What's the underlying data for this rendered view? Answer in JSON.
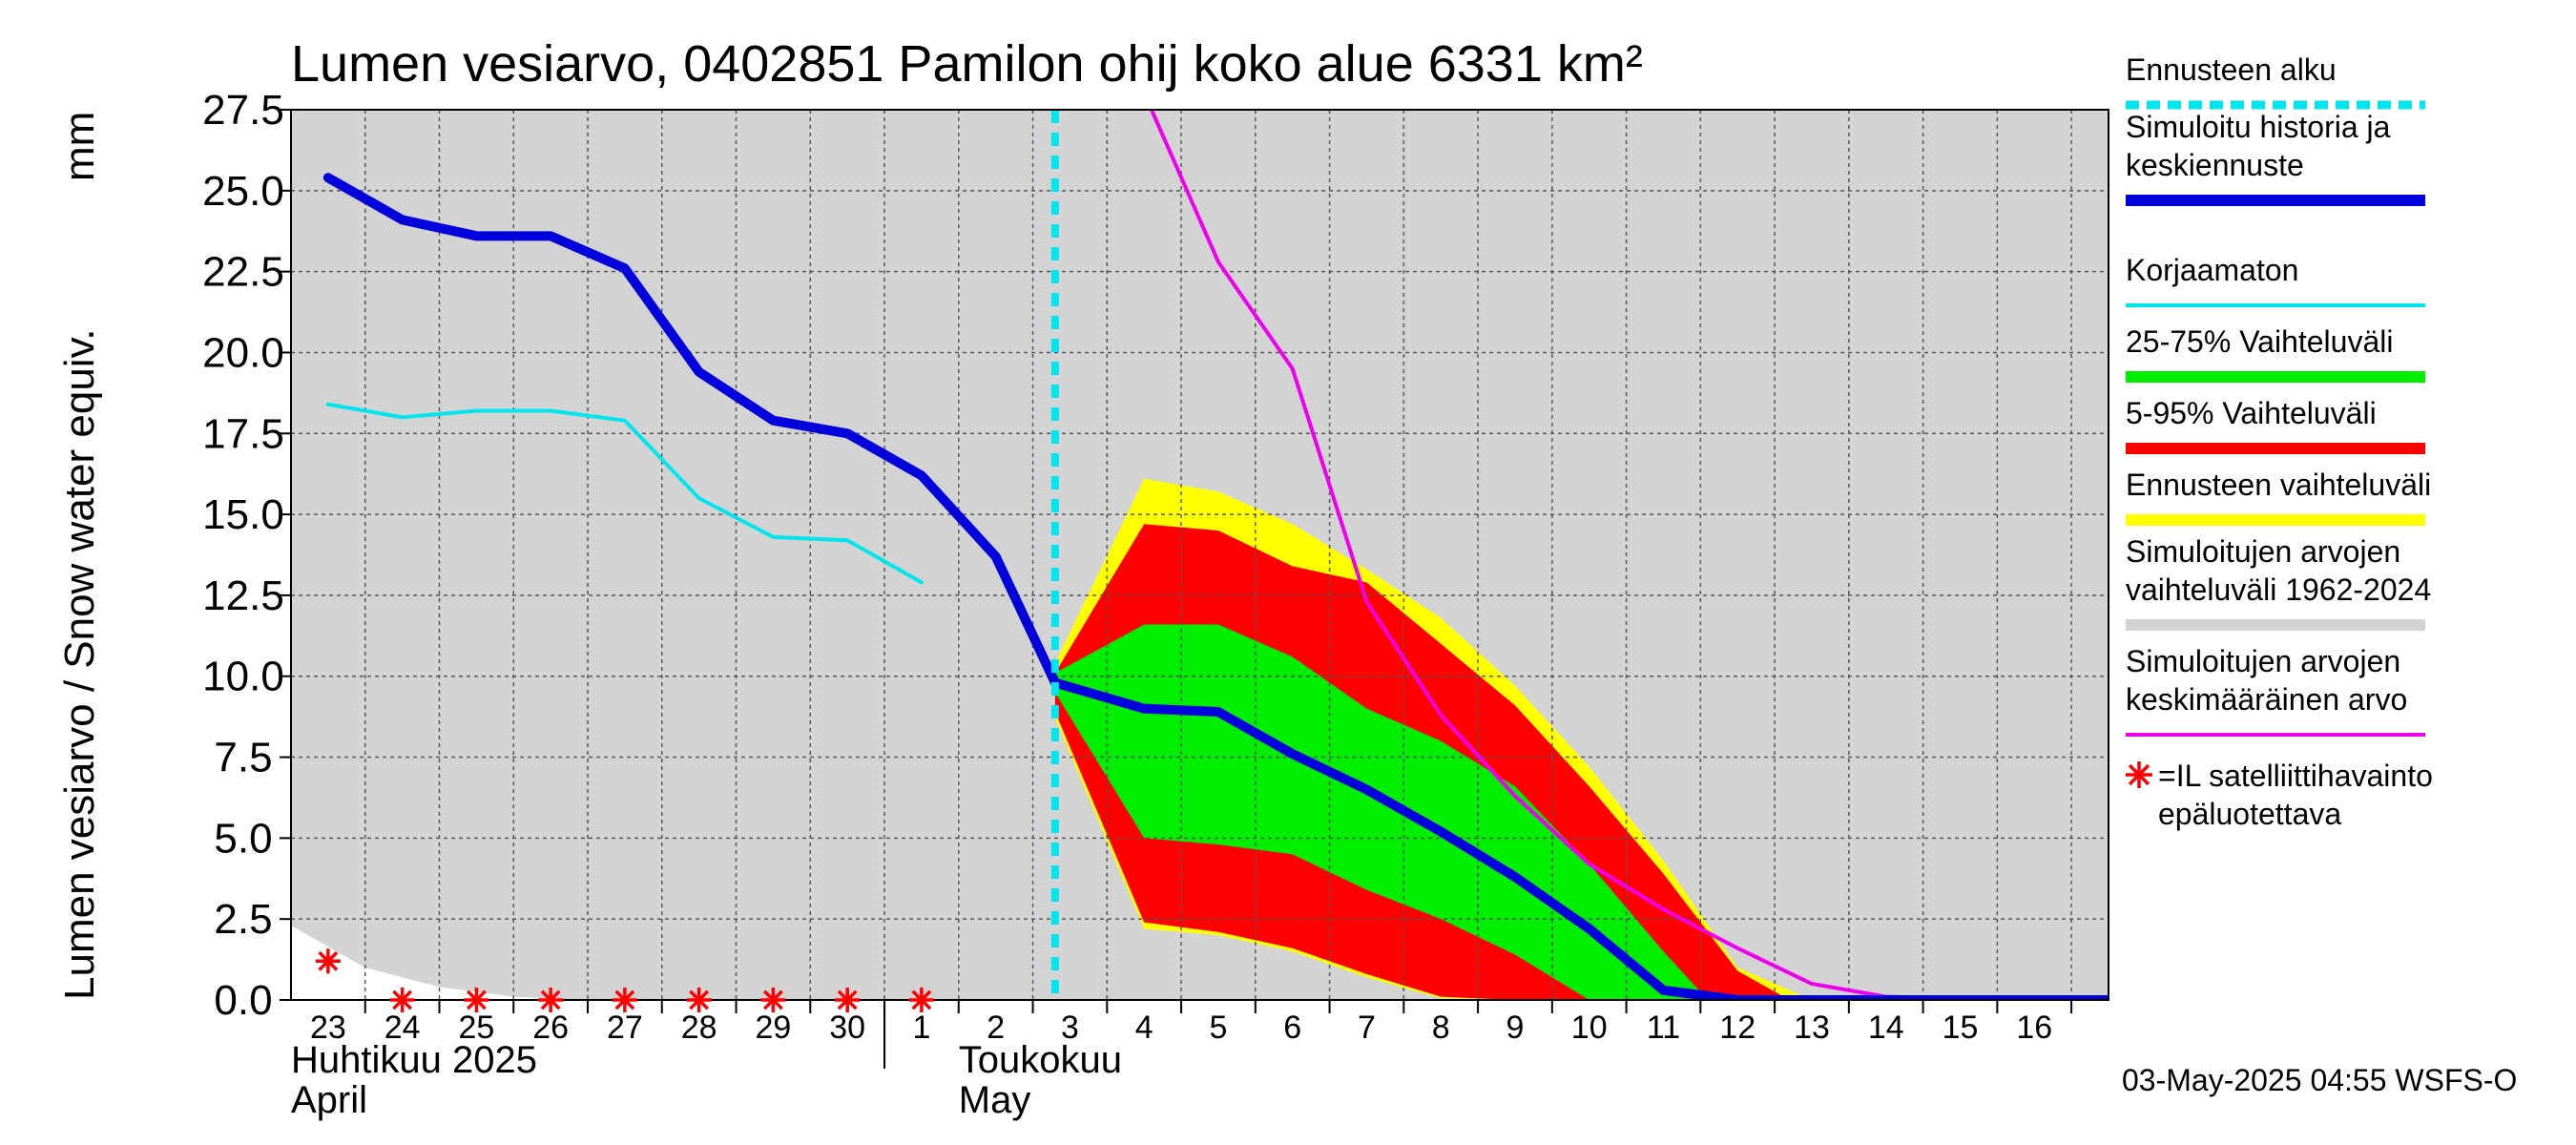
{
  "chart_data": {
    "type": "area",
    "title": "Lumen vesiarvo, 0402851 Pamilon ohij koko alue 6331 km²",
    "ylabel_fi": "Lumen vesiarvo / Snow water equiv.",
    "ylabel_unit": "mm",
    "ylim": [
      0,
      27.5
    ],
    "yticks": [
      "0.0",
      "2.5",
      "5.0",
      "7.5",
      "10.0",
      "12.5",
      "15.0",
      "17.5",
      "20.0",
      "22.5",
      "25.0",
      "27.5"
    ],
    "xlim": [
      -0.5,
      24
    ],
    "x_dates": [
      "23",
      "24",
      "25",
      "26",
      "27",
      "28",
      "29",
      "30",
      "1",
      "2",
      "3",
      "4",
      "5",
      "6",
      "7",
      "8",
      "9",
      "10",
      "11",
      "12",
      "13",
      "14",
      "15",
      "16"
    ],
    "month_labels": {
      "april_fi": "Huhtikuu  2025",
      "april_en": "April",
      "may_fi": "Toukokuu",
      "may_en": "May"
    },
    "grid": true,
    "legend_position": "right",
    "forecast_start_x": 9.8,
    "series": [
      {
        "name": "Simuloitujen arvojen vaihteluväli 1962-2024",
        "color": "#d3d3d3",
        "kind": "band",
        "x": [
          -0.5,
          24
        ],
        "upper": [
          27.5,
          27.5
        ],
        "lower": [
          0,
          0
        ],
        "lower_gap": {
          "x": [
            -0.5,
            0.5,
            1.5,
            2.5,
            3.5
          ],
          "y": [
            2.3,
            1.0,
            0.4,
            0.1,
            0
          ]
        }
      },
      {
        "name": "Ennusteen vaihteluväli",
        "color": "#ffff00",
        "kind": "band",
        "x": [
          9.8,
          11,
          12,
          13,
          14,
          15,
          16,
          17,
          18,
          19,
          20
        ],
        "upper": [
          10.4,
          16.1,
          15.7,
          14.7,
          13.3,
          11.8,
          9.7,
          7.2,
          4.3,
          1.0,
          0
        ],
        "lower": [
          8.7,
          2.2,
          2.0,
          1.5,
          0.7,
          0.05,
          0,
          0,
          0,
          0,
          0
        ]
      },
      {
        "name": "5-95% Vaihteluväli",
        "color": "#ff0000",
        "kind": "band",
        "x": [
          9.8,
          11,
          12,
          13,
          14,
          15,
          16,
          17,
          18,
          19,
          19.7
        ],
        "upper": [
          10.1,
          14.7,
          14.5,
          13.4,
          12.9,
          11.0,
          9.1,
          6.6,
          3.9,
          0.9,
          0
        ],
        "lower": [
          8.9,
          2.4,
          2.1,
          1.6,
          0.8,
          0.1,
          0,
          0,
          0,
          0,
          0
        ]
      },
      {
        "name": "25-75% Vaihteluväli",
        "color": "#00ee00",
        "kind": "band",
        "x": [
          9.8,
          11,
          12,
          13,
          14,
          15,
          16,
          17,
          18,
          18.6
        ],
        "upper": [
          10.1,
          11.6,
          11.6,
          10.6,
          9.0,
          8.0,
          6.6,
          4.2,
          1.5,
          0
        ],
        "lower": [
          9.5,
          5.0,
          4.8,
          4.5,
          3.4,
          2.5,
          1.4,
          0,
          0,
          0
        ]
      },
      {
        "name": "Korjaamaton",
        "color": "#00e5ee",
        "kind": "line",
        "x": [
          0,
          1,
          2,
          3,
          4,
          5,
          6,
          7,
          8
        ],
        "y": [
          18.4,
          18.0,
          18.2,
          18.2,
          17.9,
          15.5,
          14.3,
          14.2,
          12.9
        ]
      },
      {
        "name": "Simuloitujen arvojen keskimääräinen arvo",
        "color": "#ee00ee",
        "kind": "line",
        "x": [
          11.1,
          12,
          13,
          14,
          15,
          16,
          17,
          18,
          19,
          20,
          21,
          22,
          24
        ],
        "y": [
          27.5,
          22.8,
          19.5,
          12.3,
          8.8,
          6.3,
          4.2,
          2.8,
          1.6,
          0.5,
          0.1,
          0.05,
          0.05
        ]
      },
      {
        "name": "Simuloitu historia ja keskiennuste",
        "color": "#0000dd",
        "kind": "line",
        "x": [
          0,
          1,
          2,
          3,
          4,
          5,
          6,
          7,
          8,
          9,
          9.8,
          11,
          12,
          13,
          14,
          15,
          16,
          17,
          18,
          19,
          20,
          21,
          22,
          24
        ],
        "y": [
          25.4,
          24.1,
          23.6,
          23.6,
          22.6,
          19.4,
          17.9,
          17.5,
          16.2,
          13.7,
          9.8,
          9.0,
          8.9,
          7.6,
          6.5,
          5.2,
          3.8,
          2.2,
          0.3,
          0,
          0,
          0,
          0,
          0
        ]
      },
      {
        "name": "Ennusteen alku",
        "color": "#00e5ee",
        "kind": "vline",
        "x": 9.8
      },
      {
        "name": "=IL satelliittihavainto epäluotettava",
        "color": "#ff0000",
        "kind": "markers",
        "x": [
          0,
          1,
          2,
          3,
          4,
          5,
          6,
          7,
          8
        ],
        "y": [
          1.2,
          0,
          0,
          0,
          0,
          0,
          0,
          0,
          0
        ]
      }
    ]
  },
  "legend": [
    {
      "label": "Ennusteen alku",
      "color": "#00e5ee",
      "style": "dash"
    },
    {
      "label": "Simuloitu historia ja\nkeskiennuste",
      "color": "#0000dd",
      "style": "thick"
    },
    {
      "label": "Korjaamaton",
      "color": "#00e5ee",
      "style": "thin"
    },
    {
      "label": "25-75% Vaihteluväli",
      "color": "#00ee00",
      "style": "thick"
    },
    {
      "label": "5-95% Vaihteluväli",
      "color": "#ff0000",
      "style": "thick"
    },
    {
      "label": "Ennusteen vaihteluväli",
      "color": "#ffff00",
      "style": "thick"
    },
    {
      "label": "Simuloitujen arvojen\nvaihteluväli 1962-2024",
      "color": "#d3d3d3",
      "style": "thick"
    },
    {
      "label": "Simuloitujen arvojen\nkeskimääräinen arvo",
      "color": "#ee00ee",
      "style": "thin"
    },
    {
      "label": "=IL satelliittihavainto\nepäluotettava",
      "color": "#ff0000",
      "style": "star"
    }
  ],
  "timestamp": "03-May-2025 04:55 WSFS-O"
}
